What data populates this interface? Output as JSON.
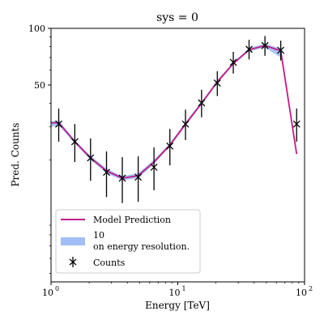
{
  "chart_data": {
    "type": "line",
    "title": "sys = 0",
    "xlabel": "Energy [TeV]",
    "ylabel": "Pred. Counts",
    "x_scale": "log",
    "y_scale": "log",
    "xlim": [
      1,
      100
    ],
    "ylim": [
      4.5,
      100
    ],
    "x_ticks": [
      {
        "value": 1,
        "base": "10",
        "exp": "0"
      },
      {
        "value": 10,
        "base": "10",
        "exp": "1"
      },
      {
        "value": 100,
        "base": "10",
        "exp": "2"
      }
    ],
    "y_ticks": [
      {
        "value": 50,
        "label": "50"
      },
      {
        "value": 100,
        "label": "100"
      }
    ],
    "series": [
      {
        "name": "Model Prediction",
        "type": "line",
        "color": "#c21a8a",
        "x": [
          1.0,
          1.15,
          1.54,
          2.05,
          2.74,
          3.65,
          4.87,
          6.49,
          8.66,
          11.5,
          15.4,
          20.5,
          27.4,
          36.5,
          48.7,
          64.9,
          86.6
        ],
        "y": [
          31.5,
          31.5,
          25.0,
          20.5,
          17.5,
          16.0,
          16.5,
          19.5,
          24.0,
          31.0,
          40.0,
          52.0,
          65.0,
          77.0,
          81.0,
          76.0,
          21.5
        ]
      },
      {
        "name": "10\non energy resolution.",
        "type": "band",
        "color": "#6f9cf0",
        "x": [
          1.0,
          1.15,
          1.54,
          2.05,
          2.74,
          3.65,
          4.87,
          6.49,
          8.66,
          11.5,
          15.4,
          20.5,
          27.4,
          36.5,
          48.7,
          64.9
        ],
        "lower": [
          30.0,
          30.5,
          24.5,
          20.0,
          17.0,
          15.6,
          16.0,
          19.0,
          23.5,
          30.3,
          39.2,
          51.0,
          64.0,
          75.5,
          79.0,
          70.0
        ],
        "upper": [
          32.0,
          32.5,
          25.5,
          21.0,
          18.0,
          16.4,
          17.0,
          20.0,
          24.5,
          31.7,
          40.8,
          53.0,
          66.0,
          78.5,
          83.0,
          78.0
        ]
      },
      {
        "name": "Counts",
        "type": "errorbar",
        "color": "#000000",
        "x": [
          1.15,
          1.54,
          2.05,
          2.74,
          3.65,
          4.87,
          6.49,
          8.66,
          11.5,
          15.4,
          20.5,
          27.4,
          36.5,
          48.7,
          64.9,
          86.6
        ],
        "y": [
          31.0,
          25.0,
          20.5,
          17.2,
          16.0,
          16.2,
          18.3,
          23.7,
          31.0,
          40.2,
          51.2,
          66.0,
          77.4,
          81.0,
          76.5,
          31.0
        ],
        "yerr_low": [
          6.0,
          5.5,
          5.0,
          4.5,
          4.2,
          4.2,
          4.5,
          5.0,
          5.5,
          6.5,
          7.5,
          8.5,
          9.0,
          9.5,
          9.0,
          6.0
        ],
        "yerr_high": [
          6.5,
          6.0,
          5.5,
          5.0,
          4.7,
          4.7,
          5.0,
          5.5,
          6.0,
          7.0,
          8.0,
          9.0,
          9.5,
          10.0,
          9.5,
          6.5
        ]
      }
    ],
    "legend": {
      "placement": "lower-left",
      "entries": [
        {
          "label": "Model Prediction",
          "kind": "line"
        },
        {
          "label_line1": "10",
          "label_line2": "on energy resolution.",
          "kind": "patch"
        },
        {
          "label": "Counts",
          "kind": "errorbar"
        }
      ]
    },
    "grid": false
  }
}
